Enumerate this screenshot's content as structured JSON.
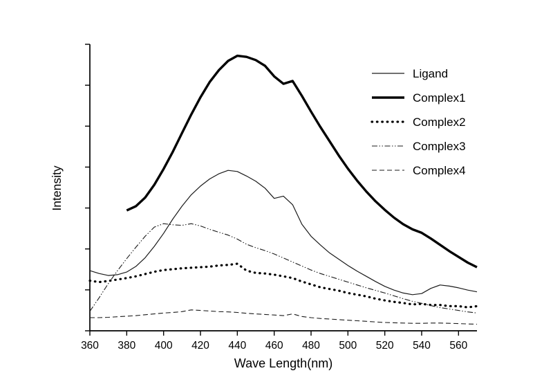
{
  "page": {
    "background": "#ffffff"
  },
  "chart_data": {
    "type": "line",
    "title": "",
    "xlabel": "Wave Length(nm)",
    "ylabel": "Intensity",
    "xlim": [
      360,
      570
    ],
    "ylim": [
      0,
      1
    ],
    "x_ticks": [
      360,
      380,
      400,
      420,
      440,
      460,
      480,
      500,
      520,
      540,
      560
    ],
    "y_ticks_count": 8,
    "y_tick_labels_shown": false,
    "grid": false,
    "legend_position": "top-right",
    "axis_color": "#000000",
    "series": [
      {
        "name": "Ligand",
        "style": "solid-thin",
        "width": 1.2,
        "color": "#1a1a1a",
        "x": [
          360,
          365,
          370,
          375,
          380,
          385,
          390,
          395,
          400,
          405,
          410,
          415,
          420,
          425,
          430,
          435,
          440,
          445,
          450,
          455,
          460,
          465,
          470,
          475,
          480,
          485,
          490,
          495,
          500,
          505,
          510,
          515,
          520,
          525,
          530,
          535,
          540,
          545,
          550,
          555,
          560,
          565,
          570
        ],
        "values": [
          0.21,
          0.2,
          0.193,
          0.196,
          0.205,
          0.225,
          0.255,
          0.295,
          0.34,
          0.39,
          0.435,
          0.475,
          0.505,
          0.53,
          0.548,
          0.56,
          0.556,
          0.54,
          0.522,
          0.498,
          0.462,
          0.47,
          0.44,
          0.372,
          0.33,
          0.3,
          0.272,
          0.25,
          0.228,
          0.208,
          0.19,
          0.172,
          0.155,
          0.142,
          0.132,
          0.126,
          0.13,
          0.148,
          0.16,
          0.156,
          0.15,
          0.142,
          0.136
        ]
      },
      {
        "name": "Complex1",
        "style": "solid-thick",
        "width": 3.4,
        "color": "#000000",
        "x": [
          380,
          385,
          390,
          395,
          400,
          405,
          410,
          415,
          420,
          425,
          430,
          435,
          440,
          445,
          450,
          455,
          460,
          465,
          470,
          475,
          480,
          485,
          490,
          495,
          500,
          505,
          510,
          515,
          520,
          525,
          530,
          535,
          540,
          545,
          550,
          555,
          560,
          565,
          570
        ],
        "values": [
          0.42,
          0.435,
          0.465,
          0.51,
          0.565,
          0.625,
          0.69,
          0.755,
          0.815,
          0.868,
          0.91,
          0.942,
          0.96,
          0.956,
          0.945,
          0.925,
          0.888,
          0.862,
          0.872,
          0.82,
          0.765,
          0.712,
          0.662,
          0.612,
          0.566,
          0.524,
          0.486,
          0.452,
          0.422,
          0.395,
          0.372,
          0.354,
          0.342,
          0.322,
          0.3,
          0.278,
          0.258,
          0.238,
          0.222
        ]
      },
      {
        "name": "Complex2",
        "style": "dotted",
        "width": 3.2,
        "color": "#000000",
        "x": [
          360,
          365,
          370,
          375,
          380,
          385,
          390,
          395,
          400,
          405,
          410,
          415,
          420,
          425,
          430,
          435,
          440,
          445,
          450,
          455,
          460,
          465,
          470,
          475,
          480,
          485,
          490,
          495,
          500,
          505,
          510,
          515,
          520,
          525,
          530,
          535,
          540,
          545,
          550,
          555,
          560,
          565,
          570
        ],
        "values": [
          0.175,
          0.17,
          0.174,
          0.179,
          0.184,
          0.19,
          0.198,
          0.206,
          0.212,
          0.215,
          0.218,
          0.22,
          0.222,
          0.224,
          0.228,
          0.23,
          0.234,
          0.21,
          0.202,
          0.2,
          0.196,
          0.19,
          0.184,
          0.172,
          0.162,
          0.152,
          0.146,
          0.14,
          0.132,
          0.126,
          0.12,
          0.112,
          0.106,
          0.101,
          0.097,
          0.092,
          0.094,
          0.09,
          0.09,
          0.086,
          0.086,
          0.082,
          0.086
        ]
      },
      {
        "name": "Complex3",
        "style": "dash-dot-dot",
        "width": 1.1,
        "color": "#1a1a1a",
        "x": [
          360,
          365,
          370,
          375,
          380,
          385,
          390,
          395,
          400,
          405,
          410,
          415,
          420,
          425,
          430,
          435,
          440,
          445,
          450,
          455,
          460,
          465,
          470,
          475,
          480,
          485,
          490,
          495,
          500,
          505,
          510,
          515,
          520,
          525,
          530,
          535,
          540,
          545,
          550,
          555,
          560,
          565,
          570
        ],
        "values": [
          0.068,
          0.115,
          0.165,
          0.21,
          0.252,
          0.292,
          0.33,
          0.362,
          0.374,
          0.37,
          0.368,
          0.374,
          0.366,
          0.354,
          0.344,
          0.334,
          0.32,
          0.302,
          0.29,
          0.28,
          0.268,
          0.254,
          0.24,
          0.226,
          0.212,
          0.2,
          0.19,
          0.18,
          0.17,
          0.16,
          0.15,
          0.141,
          0.132,
          0.122,
          0.112,
          0.103,
          0.096,
          0.088,
          0.081,
          0.076,
          0.071,
          0.066,
          0.062
        ]
      },
      {
        "name": "Complex4",
        "style": "dashed",
        "width": 1.1,
        "color": "#1a1a1a",
        "x": [
          360,
          365,
          370,
          375,
          380,
          385,
          390,
          395,
          400,
          405,
          410,
          415,
          420,
          425,
          430,
          435,
          440,
          445,
          450,
          455,
          460,
          465,
          470,
          475,
          480,
          485,
          490,
          495,
          500,
          505,
          510,
          515,
          520,
          525,
          530,
          535,
          540,
          545,
          550,
          555,
          560,
          565,
          570
        ],
        "values": [
          0.046,
          0.046,
          0.047,
          0.049,
          0.051,
          0.053,
          0.056,
          0.059,
          0.062,
          0.064,
          0.067,
          0.073,
          0.071,
          0.069,
          0.067,
          0.066,
          0.064,
          0.061,
          0.059,
          0.057,
          0.055,
          0.053,
          0.059,
          0.05,
          0.046,
          0.043,
          0.041,
          0.039,
          0.037,
          0.035,
          0.033,
          0.031,
          0.029,
          0.028,
          0.027,
          0.026,
          0.026,
          0.027,
          0.027,
          0.026,
          0.025,
          0.024,
          0.023
        ]
      }
    ]
  }
}
